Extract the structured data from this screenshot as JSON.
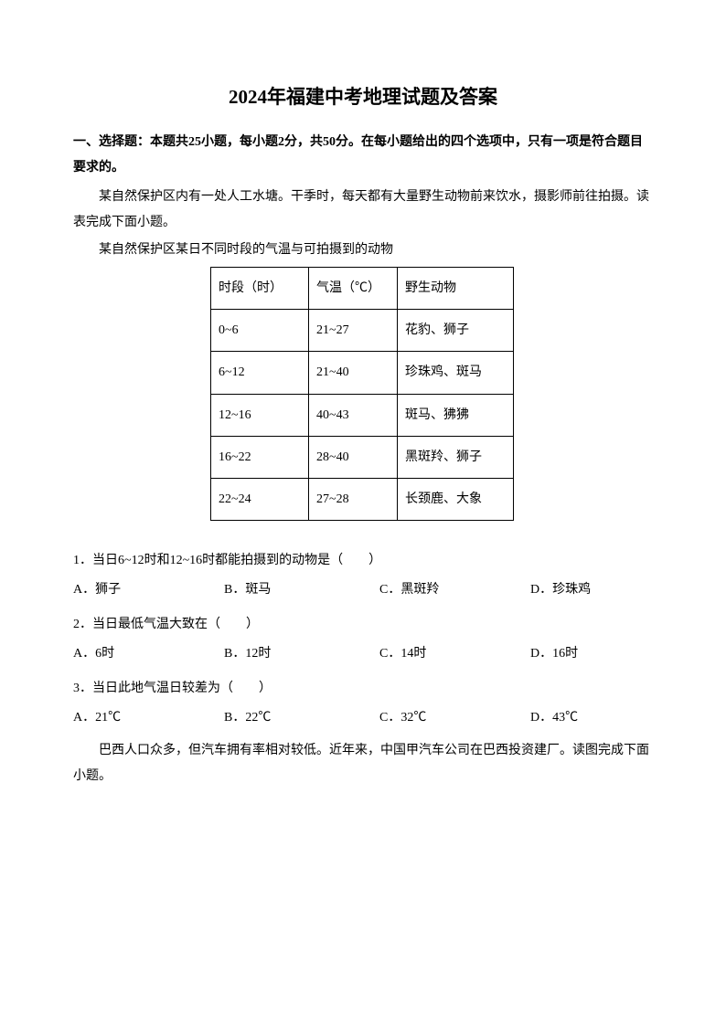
{
  "title": "2024年福建中考地理试题及答案",
  "section_header": "一、选择题：本题共25小题，每小题2分，共50分。在每小题给出的四个选项中，只有一项是符合题目要求的。",
  "intro1": "某自然保护区内有一处人工水塘。干季时，每天都有大量野生动物前来饮水，摄影师前往拍摄。读表完成下面小题。",
  "table_caption": "某自然保护区某日不同时段的气温与可拍摄到的动物",
  "table": {
    "headers": [
      "时段（时）",
      "气温（℃）",
      "野生动物"
    ],
    "rows": [
      [
        "0~6",
        "21~27",
        "花豹、狮子"
      ],
      [
        "6~12",
        "21~40",
        "珍珠鸡、斑马"
      ],
      [
        "12~16",
        "40~43",
        "斑马、狒狒"
      ],
      [
        "16~22",
        "28~40",
        "黑斑羚、狮子"
      ],
      [
        "22~24",
        "27~28",
        "长颈鹿、大象"
      ]
    ]
  },
  "questions": [
    {
      "text": "1．当日6~12时和12~16时都能拍摄到的动物是（　　）",
      "opts": [
        "A．狮子",
        "B．斑马",
        "C．黑斑羚",
        "D．珍珠鸡"
      ]
    },
    {
      "text": "2．当日最低气温大致在（　　）",
      "opts": [
        "A．6时",
        "B．12时",
        "C．14时",
        "D．16时"
      ]
    },
    {
      "text": "3．当日此地气温日较差为（　　）",
      "opts": [
        "A．21℃",
        "B．22℃",
        "C．32℃",
        "D．43℃"
      ]
    }
  ],
  "intro2": "巴西人口众多，但汽车拥有率相对较低。近年来，中国甲汽车公司在巴西投资建厂。读图完成下面小题。"
}
